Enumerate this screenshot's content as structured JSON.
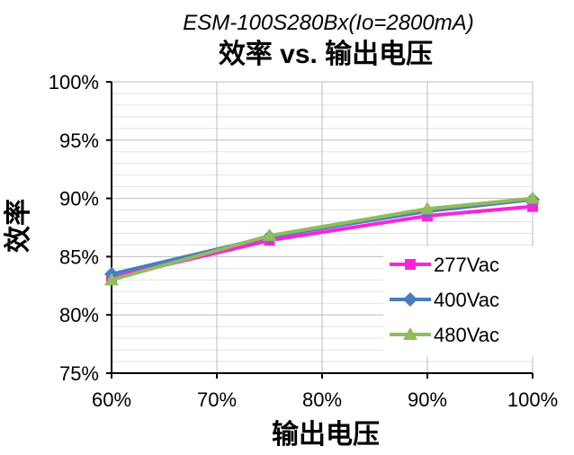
{
  "chart_data": {
    "type": "line",
    "title": "ESM-100S280Bx(Io=2800mA)",
    "subtitle": "效率 vs. 输出电压",
    "xlabel": "输出电压",
    "ylabel": "效率",
    "x": [
      60,
      75,
      90,
      100
    ],
    "xlim": [
      60,
      100
    ],
    "ylim": [
      75,
      100
    ],
    "xticks": [
      "60%",
      "70%",
      "80%",
      "90%",
      "100%"
    ],
    "yticks": [
      "75%",
      "80%",
      "85%",
      "90%",
      "95%",
      "100%"
    ],
    "grid": true,
    "legend_position": "bottom-right",
    "series": [
      {
        "name": "277Vac",
        "values": [
          83.2,
          86.4,
          88.5,
          89.3
        ],
        "color": "#ff22dd",
        "marker": "square"
      },
      {
        "name": "400Vac",
        "values": [
          83.5,
          86.7,
          88.9,
          89.9
        ],
        "color": "#4a7ebb",
        "marker": "diamond"
      },
      {
        "name": "480Vac",
        "values": [
          83.0,
          86.8,
          89.1,
          90.0
        ],
        "color": "#8fbc5c",
        "marker": "triangle"
      }
    ]
  }
}
